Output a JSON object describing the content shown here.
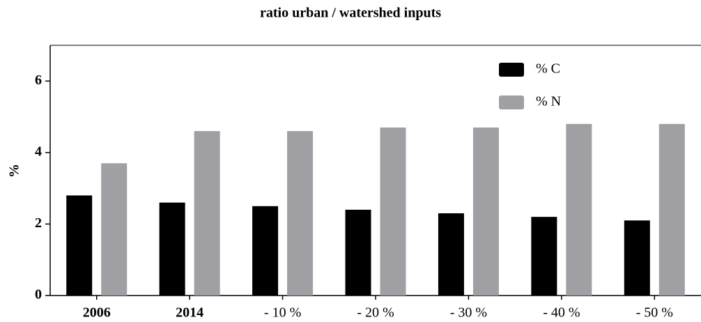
{
  "chart_data": {
    "type": "bar",
    "title": "ratio urban / watershed inputs",
    "y_label": "%",
    "categories": [
      "2006",
      "2014",
      "- 10 %",
      "- 20 %",
      "- 30 %",
      "- 40 %",
      "- 50 %"
    ],
    "series": [
      {
        "name": "% C",
        "color": "#000000",
        "values": [
          2.8,
          2.6,
          2.5,
          2.4,
          2.3,
          2.2,
          2.1
        ]
      },
      {
        "name": "% N",
        "color": "#a0a0a4",
        "values": [
          3.7,
          4.6,
          4.6,
          4.7,
          4.7,
          4.8,
          4.8
        ]
      }
    ],
    "ylim": [
      0,
      7
    ],
    "yticks": [
      0,
      2,
      4,
      6
    ],
    "grid": false,
    "legend": "top-right"
  }
}
